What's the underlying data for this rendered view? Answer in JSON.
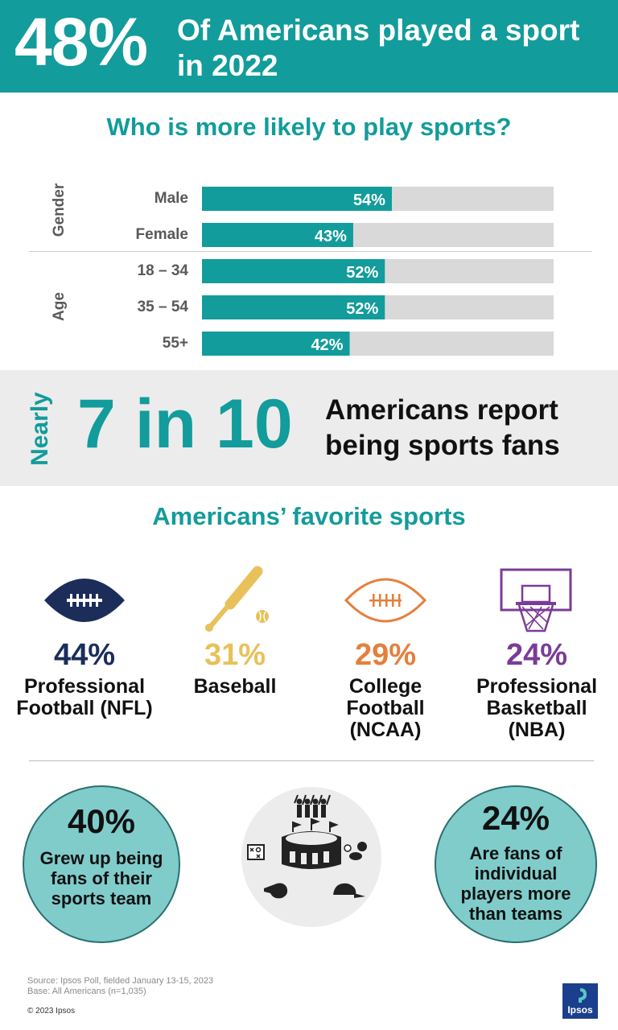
{
  "banner": {
    "percent": "48%",
    "text": "Of Americans played a sport in 2022"
  },
  "who_title": "Who is more likely to play sports?",
  "groups": {
    "gender": "Gender",
    "age": "Age"
  },
  "chart_data": {
    "type": "bar",
    "orientation": "horizontal",
    "title": "Who is more likely to play sports?",
    "categories": [
      "Male",
      "Female",
      "18 – 34",
      "35 – 54",
      "55+"
    ],
    "groups": [
      "Gender",
      "Gender",
      "Age",
      "Age",
      "Age"
    ],
    "values": [
      54,
      43,
      52,
      52,
      42
    ],
    "labels": [
      "54%",
      "43%",
      "52%",
      "52%",
      "42%"
    ],
    "xlim": [
      0,
      100
    ],
    "bar_color": "#129c9b",
    "track_color": "#d9d9d9"
  },
  "fans": {
    "nearly": "Nearly",
    "ratio": "7 in 10",
    "text": "Americans report being sports fans"
  },
  "favorites": {
    "title": "Americans’ favorite sports",
    "items": [
      {
        "pct": "44%",
        "name": "Professional Football (NFL)",
        "color": "#1c2d5a",
        "icon": "football-icon"
      },
      {
        "pct": "31%",
        "name": "Baseball",
        "color": "#e8c15a",
        "icon": "baseball-bat-icon"
      },
      {
        "pct": "29%",
        "name": "College Football (NCAA)",
        "color": "#e57f3c",
        "icon": "football-outline-icon"
      },
      {
        "pct": "24%",
        "name": "Professional Basketball (NBA)",
        "color": "#7a3c96",
        "icon": "basketball-hoop-icon"
      }
    ]
  },
  "circles": {
    "left": {
      "pct": "40%",
      "text": "Grew up being fans of their sports team"
    },
    "right": {
      "pct": "24%",
      "text": "Are fans of individual players more than teams"
    }
  },
  "footer": {
    "source": "Source: Ipsos Poll, fielded January 13-15, 2023",
    "base": "Base: All Americans (n=1,035)",
    "copyright": "© 2023 Ipsos",
    "logo": "Ipsos"
  },
  "colors": {
    "teal": "#129c9b",
    "circle": "#7fcccb",
    "band": "#ececec"
  }
}
